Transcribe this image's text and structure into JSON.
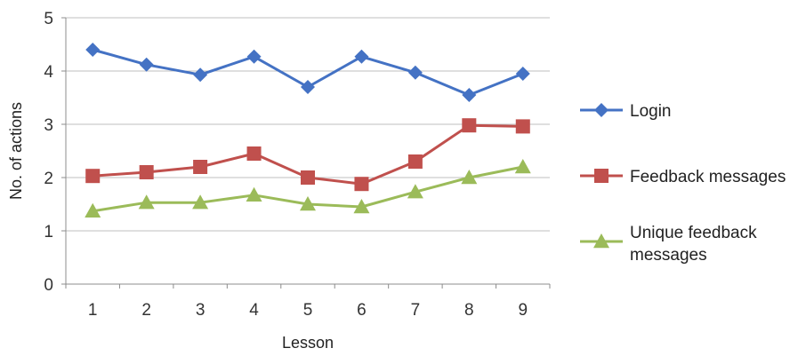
{
  "chart_data": {
    "type": "line",
    "xlabel": "Lesson",
    "ylabel": "No. of actions",
    "x": [
      1,
      2,
      3,
      4,
      5,
      6,
      7,
      8,
      9
    ],
    "ylim": [
      0,
      5
    ],
    "yticks": [
      0,
      1,
      2,
      3,
      4,
      5
    ],
    "grid": "horizontal",
    "legend_position": "right",
    "series": [
      {
        "name": "Login",
        "values": [
          4.4,
          4.12,
          3.93,
          4.27,
          3.7,
          4.27,
          3.97,
          3.55,
          3.95
        ],
        "color": "#4472C4",
        "marker": "diamond"
      },
      {
        "name": "Feedback messages",
        "values": [
          2.03,
          2.1,
          2.2,
          2.45,
          2.0,
          1.88,
          2.3,
          2.98,
          2.96
        ],
        "color": "#C0504D",
        "marker": "square"
      },
      {
        "name": "Unique feedback messages",
        "legend_lines": [
          "Unique feedback",
          "messages"
        ],
        "values": [
          1.37,
          1.53,
          1.53,
          1.67,
          1.5,
          1.45,
          1.73,
          2.0,
          2.2
        ],
        "color": "#9BBB59",
        "marker": "triangle"
      }
    ]
  }
}
